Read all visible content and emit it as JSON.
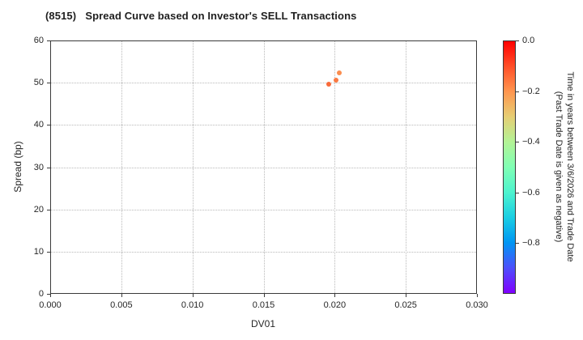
{
  "chart_data": {
    "type": "scatter",
    "title": "(8515)   Spread Curve based on Investor's SELL Transactions",
    "xlabel": "DV01",
    "ylabel": "Spread (bp)",
    "xlim": [
      0.0,
      0.03
    ],
    "ylim": [
      0,
      60
    ],
    "x_ticks": [
      "0.000",
      "0.005",
      "0.010",
      "0.015",
      "0.020",
      "0.025",
      "0.030"
    ],
    "y_ticks": [
      "0",
      "10",
      "20",
      "30",
      "40",
      "50",
      "60"
    ],
    "grid": true,
    "legend": "none",
    "points": [
      {
        "x": 0.0203,
        "y": 52.3,
        "time_years": -0.19,
        "color": "#fb8d4e"
      },
      {
        "x": 0.0201,
        "y": 50.7,
        "time_years": -0.15,
        "color": "#fa7a43"
      },
      {
        "x": 0.0196,
        "y": 49.6,
        "time_years": -0.12,
        "color": "#f96a39"
      }
    ],
    "colorbar": {
      "range": [
        0.0,
        -1.0
      ],
      "ticks": [
        "0.0",
        "−0.2",
        "−0.4",
        "−0.6",
        "−0.8"
      ],
      "label_line1": "Time in years between 3/6/2026 and Trade Date",
      "label_line2": "(Past Trade Date is given as negative)",
      "colormap": "rainbow",
      "gradient_top_to_bottom": [
        "#ff0000",
        "#ff4f28",
        "#ff964f",
        "#e6ce74",
        "#b3f396",
        "#80ffb4",
        "#4df3ce",
        "#1acee3",
        "#0096f3",
        "#4d4ffc",
        "#8000ff"
      ]
    },
    "colors": {
      "spine": "#3a3a3a",
      "grid": "#b9b9b9",
      "text": "#262626",
      "background": "#ffffff"
    }
  }
}
